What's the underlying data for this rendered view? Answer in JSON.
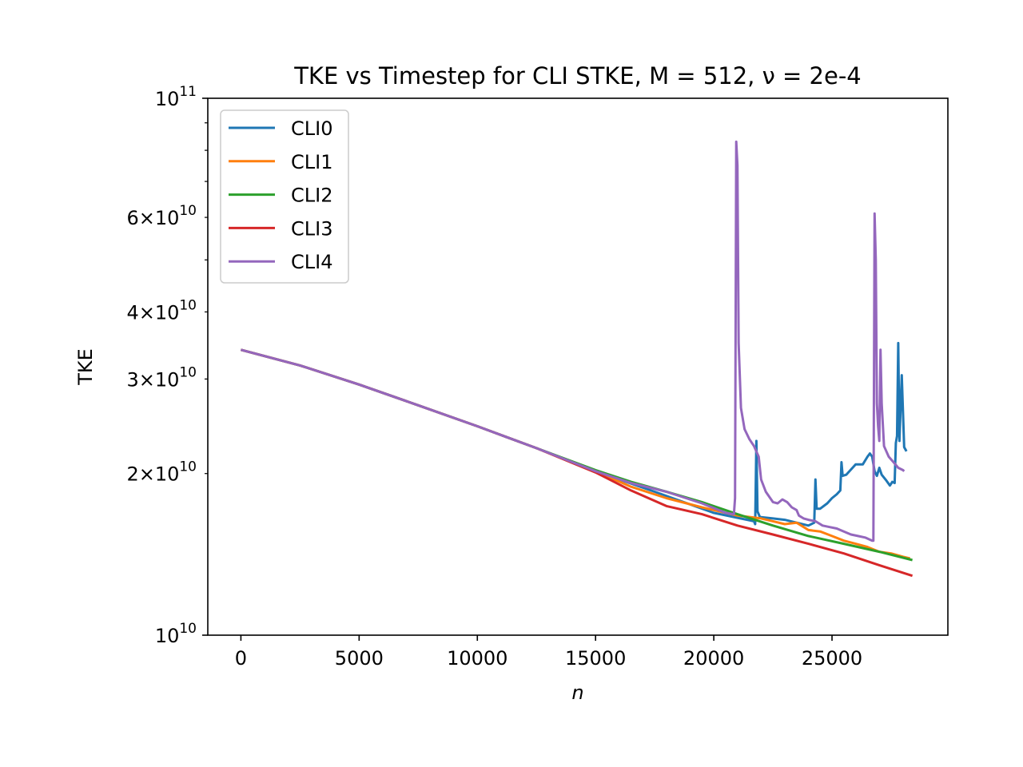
{
  "chart_data": {
    "type": "line",
    "title": "TKE vs Timestep for CLI STKE, M = 512, ν = 2e-4",
    "xlabel": "n",
    "ylabel": "TKE",
    "xlim": [
      -1400,
      29900
    ],
    "ylim": [
      10000000000,
      100000000000
    ],
    "yscale": "log",
    "grid": false,
    "legend_position": "top-left",
    "x_ticks": [
      {
        "value": 0,
        "label": "0"
      },
      {
        "value": 5000,
        "label": "5000"
      },
      {
        "value": 10000,
        "label": "10000"
      },
      {
        "value": 15000,
        "label": "15000"
      },
      {
        "value": 20000,
        "label": "20000"
      },
      {
        "value": 25000,
        "label": "25000"
      }
    ],
    "y_ticks": [
      {
        "value": 10000000000,
        "base": "10",
        "exp": "10"
      },
      {
        "value": 20000000000,
        "base": "2×10",
        "exp": "10"
      },
      {
        "value": 30000000000,
        "base": "3×10",
        "exp": "10"
      },
      {
        "value": 40000000000,
        "base": "4×10",
        "exp": "10"
      },
      {
        "value": 60000000000,
        "base": "6×10",
        "exp": "10"
      },
      {
        "value": 100000000000,
        "base": "10",
        "exp": "11"
      }
    ],
    "series": [
      {
        "name": "CLI0",
        "color": "#1f77b4",
        "x": [
          0,
          2500,
          5000,
          7500,
          10000,
          12500,
          15000,
          17500,
          20000,
          21700,
          21750,
          21800,
          21850,
          21950,
          22500,
          23000,
          23500,
          24000,
          24250,
          24300,
          24350,
          24500,
          24800,
          25000,
          25200,
          25350,
          25400,
          25450,
          25600,
          26000,
          26300,
          26500,
          26600,
          26700,
          26800,
          26900,
          27000,
          27100,
          27300,
          27450,
          27550,
          27650,
          27700,
          27750,
          27800,
          27850,
          27950,
          28050,
          28150
        ],
        "y": [
          34000000000,
          31800000000,
          29300000000,
          26800000000,
          24500000000,
          22300000000,
          20200000000,
          18500000000,
          16900000000,
          16300000000,
          16100000000,
          23000000000,
          17000000000,
          16600000000,
          16500000000,
          16400000000,
          16200000000,
          16000000000,
          16200000000,
          19500000000,
          17200000000,
          17200000000,
          17600000000,
          18000000000,
          18300000000,
          18600000000,
          21000000000,
          19800000000,
          19900000000,
          20800000000,
          20800000000,
          21500000000,
          21800000000,
          21500000000,
          20200000000,
          19800000000,
          20500000000,
          19900000000,
          19400000000,
          19000000000,
          19300000000,
          19200000000,
          22800000000,
          23500000000,
          35000000000,
          23000000000,
          30500000000,
          22400000000,
          22000000000
        ]
      },
      {
        "name": "CLI1",
        "color": "#ff7f0e",
        "x": [
          0,
          2500,
          5000,
          7500,
          10000,
          12500,
          15000,
          16500,
          18000,
          19500,
          21000,
          22000,
          22500,
          23000,
          23500,
          24000,
          24500,
          25000,
          25500,
          26000,
          26500,
          27000,
          27500,
          28000,
          28300
        ],
        "y": [
          34000000000,
          31800000000,
          29300000000,
          26800000000,
          24500000000,
          22300000000,
          20200000000,
          18900000000,
          18000000000,
          17300000000,
          16700000000,
          16500000000,
          16300000000,
          16100000000,
          16200000000,
          15700000000,
          15600000000,
          15300000000,
          15000000000,
          14800000000,
          14600000000,
          14300000000,
          14200000000,
          14000000000,
          13900000000
        ]
      },
      {
        "name": "CLI2",
        "color": "#2ca02c",
        "x": [
          0,
          2500,
          5000,
          7500,
          10000,
          12500,
          15000,
          16500,
          18000,
          19500,
          21000,
          22500,
          24000,
          25500,
          27000,
          28400
        ],
        "y": [
          34000000000,
          31800000000,
          29300000000,
          26800000000,
          24500000000,
          22300000000,
          20300000000,
          19300000000,
          18500000000,
          17700000000,
          16800000000,
          16000000000,
          15300000000,
          14800000000,
          14300000000,
          13800000000
        ]
      },
      {
        "name": "CLI3",
        "color": "#d62728",
        "x": [
          0,
          2500,
          5000,
          7500,
          10000,
          12500,
          15000,
          16500,
          18000,
          19500,
          21000,
          22500,
          24000,
          25500,
          27000,
          28400
        ],
        "y": [
          34000000000,
          31800000000,
          29300000000,
          26800000000,
          24500000000,
          22300000000,
          20100000000,
          18600000000,
          17400000000,
          16800000000,
          16000000000,
          15400000000,
          14800000000,
          14200000000,
          13500000000,
          12900000000
        ]
      },
      {
        "name": "CLI4",
        "color": "#9467bd",
        "x": [
          0,
          2500,
          5000,
          7500,
          10000,
          12500,
          15000,
          16500,
          18000,
          19500,
          20500,
          20850,
          20900,
          20950,
          21000,
          21050,
          21150,
          21300,
          21500,
          21700,
          21900,
          22000,
          22200,
          22500,
          22700,
          22900,
          23100,
          23300,
          23500,
          23600,
          23800,
          24000,
          24300,
          24600,
          24900,
          25200,
          25500,
          25800,
          26100,
          26400,
          26700,
          26750,
          26800,
          26850,
          26900,
          26950,
          27000,
          27050,
          27100,
          27200,
          27400,
          27600,
          27800,
          28000,
          28050
        ],
        "y": [
          34000000000,
          31800000000,
          29300000000,
          26800000000,
          24500000000,
          22300000000,
          20200000000,
          19200000000,
          18500000000,
          17600000000,
          16900000000,
          16800000000,
          18000000000,
          83000000000,
          75000000000,
          35000000000,
          26500000000,
          24200000000,
          23200000000,
          22500000000,
          21500000000,
          19500000000,
          18500000000,
          17700000000,
          17600000000,
          17900000000,
          17700000000,
          17300000000,
          17100000000,
          16700000000,
          16500000000,
          16400000000,
          16300000000,
          16000000000,
          15900000000,
          15800000000,
          15600000000,
          15400000000,
          15300000000,
          15200000000,
          15000000000,
          15000000000,
          61000000000,
          50000000000,
          27000000000,
          24500000000,
          23000000000,
          34000000000,
          27000000000,
          22500000000,
          21500000000,
          21000000000,
          20500000000,
          20300000000,
          20200000000
        ]
      }
    ]
  }
}
